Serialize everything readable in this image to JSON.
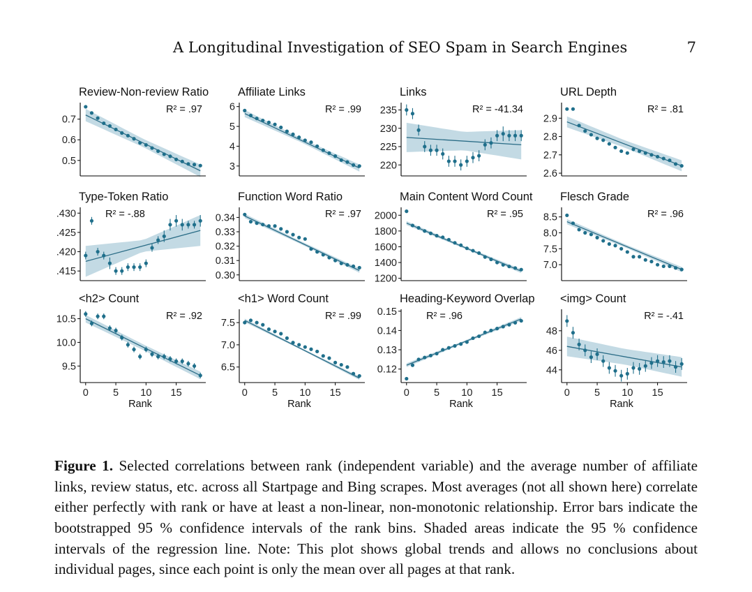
{
  "header": {
    "running_title": "A Longitudinal Investigation of SEO Spam in Search Engines",
    "page_number": "7"
  },
  "caption": {
    "label": "Figure 1.",
    "text": " Selected correlations between rank (independent variable) and the average number of affiliate links, review status, etc. across all Startpage and Bing scrapes. Most averages (not all shown here) correlate either perfectly with rank or have at least a non-linear, non-monotonic relationship. Error bars indicate the bootstrapped 95 % confidence intervals of the rank bins. Shaded areas indicate the 95 % confidence intervals of the regression line. Note: This plot shows global trends and allows no conclusions about individual pages, since each point is only the mean over all pages at that rank."
  },
  "colors": {
    "point": "#1f6f8b",
    "band": "#b8d3df",
    "line": "#2a6c86",
    "axis": "#000000"
  },
  "chart_data": [
    {
      "type": "scatter",
      "title": "Review-Non-review Ratio",
      "annotation": "R² = .97",
      "xlabel": "",
      "xlim": [
        -0.9,
        19.9
      ],
      "ylim": [
        0.425,
        0.78
      ],
      "xticks": [],
      "yticks": [
        0.5,
        0.6,
        0.7
      ],
      "yticklabels": [
        "0.5",
        "0.6",
        "0.7"
      ],
      "points": [
        0.76,
        0.73,
        0.705,
        0.68,
        0.667,
        0.65,
        0.633,
        0.62,
        0.605,
        0.585,
        0.575,
        0.56,
        0.545,
        0.53,
        0.52,
        0.505,
        0.495,
        0.483,
        0.48,
        0.475
      ],
      "errors": [],
      "fit": [
        0.72,
        0.45
      ],
      "band": [
        0.02,
        0.03
      ]
    },
    {
      "type": "scatter",
      "title": "Affiliate Links",
      "annotation": "R² = .99",
      "xlabel": "",
      "xlim": [
        -0.9,
        19.9
      ],
      "ylim": [
        2.5,
        6.2
      ],
      "xticks": [],
      "yticks": [
        3,
        4,
        5,
        6
      ],
      "yticklabels": [
        "3",
        "4",
        "5",
        "6"
      ],
      "points": [
        5.8,
        5.55,
        5.4,
        5.3,
        5.2,
        5.1,
        4.95,
        4.75,
        4.6,
        4.45,
        4.3,
        4.2,
        4.0,
        3.8,
        3.65,
        3.5,
        3.3,
        3.2,
        3.05,
        3.0
      ],
      "errors": [],
      "fit": [
        5.65,
        2.9
      ],
      "band": [
        0.1,
        0.18
      ]
    },
    {
      "type": "scatter",
      "title": "Links",
      "annotation": "R² = -41.34",
      "xlabel": "",
      "xlim": [
        -0.9,
        19.9
      ],
      "ylim": [
        217,
        237
      ],
      "xticks": [],
      "yticks": [
        220,
        225,
        230,
        235
      ],
      "yticklabels": [
        "220",
        "225",
        "230",
        "235"
      ],
      "points": [
        235,
        234,
        229.5,
        225,
        224,
        224,
        223,
        221,
        221,
        220,
        221,
        222,
        222.5,
        225.5,
        226,
        228,
        228.5,
        228,
        228,
        228
      ],
      "errors": [
        1.5,
        1.5,
        1.5,
        1.5,
        1.5,
        1.5,
        1.5,
        1.5,
        1.5,
        1.5,
        1.5,
        1.5,
        1.5,
        1.5,
        1.5,
        1.5,
        2,
        1.5,
        1.5,
        1.5
      ],
      "fit": [
        227.5,
        225.5
      ],
      "band": [
        2.5,
        4
      ]
    },
    {
      "type": "scatter",
      "title": "URL Depth",
      "annotation": "R² = .81",
      "xlabel": "",
      "xlim": [
        -0.9,
        19.9
      ],
      "ylim": [
        2.585,
        2.985
      ],
      "xticks": [],
      "yticks": [
        2.6,
        2.7,
        2.8,
        2.9
      ],
      "yticklabels": [
        "2.6",
        "2.7",
        "2.8",
        "2.9"
      ],
      "points": [
        2.95,
        2.95,
        2.86,
        2.83,
        2.81,
        2.79,
        2.78,
        2.76,
        2.74,
        2.72,
        2.71,
        2.73,
        2.72,
        2.71,
        2.7,
        2.69,
        2.68,
        2.67,
        2.65,
        2.64
      ],
      "errors": [],
      "fit": [
        2.88,
        2.64
      ],
      "band": [
        0.02,
        0.03
      ]
    },
    {
      "type": "scatter",
      "title": "Type-Token Ratio",
      "annotation": "R² = -.88",
      "xlabel": "",
      "xlim": [
        -0.9,
        19.9
      ],
      "ylim": [
        0.4125,
        0.4315
      ],
      "xticks": [],
      "yticks": [
        0.415,
        0.42,
        0.425,
        0.43
      ],
      "yticklabels": [
        ".415",
        ".420",
        ".425",
        ".430"
      ],
      "points": [
        0.419,
        0.428,
        0.42,
        0.419,
        0.417,
        0.415,
        0.415,
        0.416,
        0.416,
        0.416,
        0.417,
        0.421,
        0.423,
        0.424,
        0.427,
        0.428,
        0.427,
        0.427,
        0.427,
        0.428
      ],
      "errors": [
        0.001,
        0.001,
        0.001,
        0.001,
        0.0015,
        0.001,
        0.001,
        0.001,
        0.001,
        0.001,
        0.001,
        0.001,
        0.001,
        0.0015,
        0.0015,
        0.0015,
        0.0015,
        0.001,
        0.001,
        0.0015
      ],
      "fit": [
        0.4175,
        0.4255
      ],
      "band": [
        0.0015,
        0.004
      ]
    },
    {
      "type": "scatter",
      "title": "Function Word Ratio",
      "annotation": "R² = .97",
      "xlabel": "",
      "xlim": [
        -0.9,
        19.9
      ],
      "ylim": [
        0.296,
        0.347
      ],
      "xticks": [],
      "yticks": [
        0.3,
        0.31,
        0.32,
        0.33,
        0.34
      ],
      "yticklabels": [
        "0.30",
        "0.31",
        "0.32",
        "0.33",
        "0.34"
      ],
      "points": [
        0.342,
        0.337,
        0.336,
        0.335,
        0.334,
        0.334,
        0.332,
        0.33,
        0.328,
        0.326,
        0.325,
        0.318,
        0.316,
        0.314,
        0.312,
        0.31,
        0.308,
        0.307,
        0.306,
        0.305
      ],
      "errors": [],
      "fit": [
        0.341,
        0.303
      ],
      "band": [
        0.001,
        0.0015
      ]
    },
    {
      "type": "scatter",
      "title": "Main Content Word Count",
      "annotation": "R² = .95",
      "xlabel": "",
      "xlim": [
        -0.9,
        19.9
      ],
      "ylim": [
        1170,
        2100
      ],
      "xticks": [],
      "yticks": [
        1200,
        1400,
        1600,
        1800,
        2000
      ],
      "yticklabels": [
        "1200",
        "1400",
        "1600",
        "1800",
        "2000"
      ],
      "points": [
        2050,
        1870,
        1840,
        1800,
        1770,
        1740,
        1720,
        1690,
        1650,
        1620,
        1580,
        1550,
        1520,
        1470,
        1440,
        1400,
        1370,
        1350,
        1330,
        1310
      ],
      "errors": [],
      "fit": [
        1900,
        1290
      ],
      "band": [
        15,
        25
      ]
    },
    {
      "type": "scatter",
      "title": "Flesch Grade",
      "annotation": "R² = .96",
      "xlabel": "",
      "xlim": [
        -0.9,
        19.9
      ],
      "ylim": [
        6.5,
        8.8
      ],
      "xticks": [],
      "yticks": [
        7.0,
        7.5,
        8.0,
        8.5
      ],
      "yticklabels": [
        "7.0",
        "7.5",
        "8.0",
        "8.5"
      ],
      "points": [
        8.55,
        8.3,
        8.1,
        8.0,
        7.95,
        7.85,
        7.75,
        7.65,
        7.6,
        7.5,
        7.4,
        7.25,
        7.25,
        7.15,
        7.1,
        7.0,
        6.95,
        6.95,
        6.9,
        6.85
      ],
      "errors": [],
      "fit": [
        8.35,
        6.85
      ],
      "band": [
        0.05,
        0.08
      ]
    },
    {
      "type": "scatter",
      "title": "<h2> Count",
      "annotation": "R² = .92",
      "xlabel": "Rank",
      "xlim": [
        -0.9,
        19.9
      ],
      "ylim": [
        9.15,
        10.7
      ],
      "xticks": [
        0,
        5,
        10,
        15
      ],
      "yticks": [
        9.5,
        10.0,
        10.5
      ],
      "yticklabels": [
        "9.5",
        "10.0",
        "10.5"
      ],
      "points": [
        10.6,
        10.4,
        10.55,
        10.55,
        10.3,
        10.25,
        10.1,
        9.95,
        9.85,
        9.7,
        9.85,
        9.75,
        9.7,
        9.7,
        9.65,
        9.6,
        9.6,
        9.55,
        9.5,
        9.3
      ],
      "errors": [
        0.06,
        0.06,
        0.06,
        0.06,
        0.06,
        0.06,
        0.06,
        0.06,
        0.06,
        0.06,
        0.06,
        0.06,
        0.06,
        0.06,
        0.06,
        0.06,
        0.06,
        0.06,
        0.06,
        0.06
      ],
      "fit": [
        10.5,
        9.3
      ],
      "band": [
        0.06,
        0.08
      ]
    },
    {
      "type": "scatter",
      "title": "<h1> Word Count",
      "annotation": "R² = .99",
      "xlabel": "Rank",
      "xlim": [
        -0.9,
        19.9
      ],
      "ylim": [
        6.15,
        7.8
      ],
      "xticks": [
        0,
        5,
        10,
        15
      ],
      "yticks": [
        6.5,
        7.0,
        7.5
      ],
      "yticklabels": [
        "6.5",
        "7.0",
        "7.5"
      ],
      "points": [
        7.5,
        7.55,
        7.5,
        7.45,
        7.35,
        7.3,
        7.25,
        7.15,
        7.05,
        7.0,
        6.95,
        6.9,
        6.85,
        6.75,
        6.7,
        6.6,
        6.55,
        6.5,
        6.35,
        6.3
      ],
      "errors": [],
      "fit": [
        7.55,
        6.25
      ],
      "band": [
        0.02,
        0.04
      ]
    },
    {
      "type": "scatter",
      "title": "Heading-Keyword Overlap",
      "annotation": "R² = .96",
      "xlabel": "Rank",
      "xlim": [
        -0.9,
        19.9
      ],
      "ylim": [
        0.113,
        0.151
      ],
      "xticks": [
        0,
        5,
        10,
        15
      ],
      "yticks": [
        0.12,
        0.13,
        0.14,
        0.15
      ],
      "yticklabels": [
        "0.12",
        "0.13",
        "0.14",
        "0.15"
      ],
      "points": [
        0.115,
        0.122,
        0.125,
        0.126,
        0.127,
        0.128,
        0.13,
        0.131,
        0.132,
        0.133,
        0.134,
        0.136,
        0.137,
        0.139,
        0.14,
        0.141,
        0.142,
        0.143,
        0.144,
        0.145
      ],
      "errors": [],
      "fit": [
        0.122,
        0.146
      ],
      "band": [
        0.0006,
        0.001
      ]
    },
    {
      "type": "scatter",
      "title": "<img> Count",
      "annotation": "R² = -.41",
      "xlabel": "Rank",
      "xlim": [
        -0.9,
        19.9
      ],
      "ylim": [
        42.7,
        50.2
      ],
      "xticks": [
        0,
        5,
        10,
        15
      ],
      "yticks": [
        44,
        46,
        48
      ],
      "yticklabels": [
        "44",
        "46",
        "48"
      ],
      "points": [
        49.0,
        47.8,
        46.6,
        46.0,
        45.3,
        45.6,
        44.9,
        44.2,
        43.9,
        43.4,
        43.6,
        44.2,
        44.1,
        44.4,
        44.7,
        44.9,
        44.8,
        44.9,
        44.3,
        44.6
      ],
      "errors": [
        0.6,
        0.6,
        0.6,
        0.6,
        0.6,
        0.6,
        0.6,
        0.6,
        0.6,
        0.6,
        0.6,
        0.6,
        0.6,
        0.6,
        0.6,
        0.6,
        0.6,
        0.6,
        0.6,
        0.6
      ],
      "fit": [
        46.4,
        44.3
      ],
      "band": [
        0.8,
        1.0
      ]
    }
  ]
}
